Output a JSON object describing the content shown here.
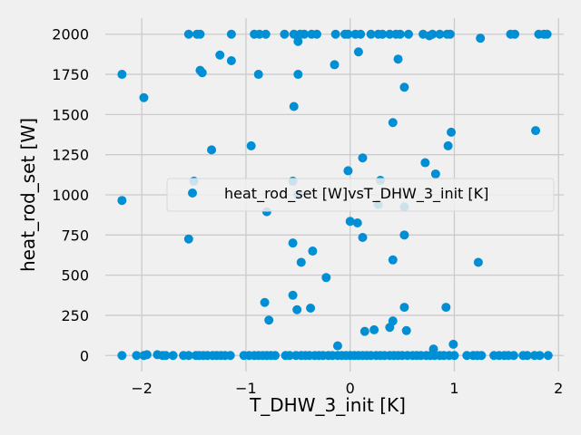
{
  "chart_data": {
    "type": "scatter",
    "xlabel": "T_DHW_3_init [K]",
    "ylabel": "heat_rod_set [W]",
    "xlim": [
      -2.35,
      2.05
    ],
    "ylim": [
      -100,
      2100
    ],
    "xticks": [
      -2,
      -1,
      0,
      1,
      2
    ],
    "xtick_labels": [
      "−2",
      "−1",
      "0",
      "1",
      "2"
    ],
    "yticks": [
      0,
      250,
      500,
      750,
      1000,
      1250,
      1500,
      1750,
      2000
    ],
    "ytick_labels": [
      "0",
      "250",
      "500",
      "750",
      "1000",
      "1250",
      "1500",
      "1750",
      "2000"
    ],
    "grid": true,
    "legend_position": "center-right",
    "color": "#008fd5",
    "series": [
      {
        "name": "heat_rod_set [W]vsT_DHW_3_init [K]",
        "points": [
          [
            -1.55,
            2000
          ],
          [
            -1.47,
            2000
          ],
          [
            -1.44,
            2000
          ],
          [
            -1.14,
            2000
          ],
          [
            -0.92,
            2000
          ],
          [
            -0.87,
            2000
          ],
          [
            -0.81,
            2000
          ],
          [
            -0.63,
            2000
          ],
          [
            -0.54,
            2000
          ],
          [
            -0.5,
            1990
          ],
          [
            -0.48,
            2000
          ],
          [
            -0.44,
            2000
          ],
          [
            -0.37,
            2000
          ],
          [
            -0.32,
            2000
          ],
          [
            -0.14,
            2000
          ],
          [
            -0.05,
            2000
          ],
          [
            -0.02,
            2000
          ],
          [
            0.05,
            2000
          ],
          [
            0.1,
            2000
          ],
          [
            0.2,
            2000
          ],
          [
            0.27,
            2000
          ],
          [
            0.31,
            2000
          ],
          [
            0.38,
            2000
          ],
          [
            0.44,
            2000
          ],
          [
            0.48,
            2000
          ],
          [
            0.56,
            2000
          ],
          [
            0.7,
            2000
          ],
          [
            0.76,
            1990
          ],
          [
            0.79,
            2000
          ],
          [
            0.86,
            2000
          ],
          [
            0.93,
            2000
          ],
          [
            0.96,
            2000
          ],
          [
            1.25,
            1975
          ],
          [
            1.54,
            2000
          ],
          [
            1.58,
            2000
          ],
          [
            1.81,
            2000
          ],
          [
            1.86,
            2000
          ],
          [
            1.89,
            2000
          ],
          [
            -0.5,
            1955
          ],
          [
            -2.19,
            1750
          ],
          [
            -1.98,
            1605
          ],
          [
            -1.44,
            1775
          ],
          [
            -1.42,
            1760
          ],
          [
            -1.25,
            1870
          ],
          [
            -1.14,
            1835
          ],
          [
            -0.88,
            1750
          ],
          [
            -0.5,
            1750
          ],
          [
            -0.15,
            1810
          ],
          [
            0.08,
            1890
          ],
          [
            0.46,
            1845
          ],
          [
            0.52,
            1670
          ],
          [
            -0.54,
            1550
          ],
          [
            0.41,
            1450
          ],
          [
            -1.33,
            1280
          ],
          [
            -0.95,
            1305
          ],
          [
            0.12,
            1230
          ],
          [
            0.94,
            1305
          ],
          [
            0.97,
            1390
          ],
          [
            1.78,
            1400
          ],
          [
            -0.02,
            1150
          ],
          [
            0.72,
            1200
          ],
          [
            0.82,
            1130
          ],
          [
            0.29,
            1090
          ],
          [
            -0.55,
            1085
          ],
          [
            -1.5,
            1085
          ],
          [
            -0.5,
            1000
          ],
          [
            -2.19,
            965
          ],
          [
            0.27,
            940
          ],
          [
            0.52,
            925
          ],
          [
            -0.8,
            895
          ],
          [
            0.0,
            835
          ],
          [
            0.07,
            825
          ],
          [
            -1.55,
            725
          ],
          [
            0.12,
            735
          ],
          [
            0.52,
            750
          ],
          [
            -0.55,
            700
          ],
          [
            -0.36,
            650
          ],
          [
            0.41,
            595
          ],
          [
            -0.47,
            580
          ],
          [
            1.23,
            580
          ],
          [
            -0.23,
            485
          ],
          [
            -0.82,
            330
          ],
          [
            -0.55,
            375
          ],
          [
            -0.51,
            285
          ],
          [
            -0.38,
            295
          ],
          [
            -0.78,
            220
          ],
          [
            0.52,
            300
          ],
          [
            0.92,
            300
          ],
          [
            0.41,
            215
          ],
          [
            0.38,
            175
          ],
          [
            0.14,
            150
          ],
          [
            0.23,
            160
          ],
          [
            0.54,
            155
          ],
          [
            -0.12,
            60
          ],
          [
            0.8,
            40
          ],
          [
            0.99,
            70
          ],
          [
            -2.19,
            0
          ],
          [
            -2.05,
            0
          ],
          [
            -1.98,
            0
          ],
          [
            -1.95,
            5
          ],
          [
            -1.85,
            5
          ],
          [
            -1.8,
            0
          ],
          [
            -1.77,
            0
          ],
          [
            -1.7,
            0
          ],
          [
            -1.6,
            0
          ],
          [
            -1.55,
            0
          ],
          [
            -1.48,
            0
          ],
          [
            -1.45,
            0
          ],
          [
            -1.41,
            0
          ],
          [
            -1.37,
            0
          ],
          [
            -1.32,
            0
          ],
          [
            -1.28,
            0
          ],
          [
            -1.24,
            0
          ],
          [
            -1.2,
            0
          ],
          [
            -1.15,
            0
          ],
          [
            -1.02,
            0
          ],
          [
            -0.97,
            0
          ],
          [
            -0.92,
            0
          ],
          [
            -0.88,
            0
          ],
          [
            -0.84,
            0
          ],
          [
            -0.8,
            0
          ],
          [
            -0.76,
            0
          ],
          [
            -0.72,
            0
          ],
          [
            -0.62,
            0
          ],
          [
            -0.58,
            0
          ],
          [
            -0.52,
            0
          ],
          [
            -0.47,
            0
          ],
          [
            -0.43,
            0
          ],
          [
            -0.39,
            0
          ],
          [
            -0.34,
            0
          ],
          [
            -0.3,
            0
          ],
          [
            -0.26,
            0
          ],
          [
            -0.21,
            0
          ],
          [
            -0.17,
            0
          ],
          [
            -0.12,
            0
          ],
          [
            -0.08,
            0
          ],
          [
            -0.04,
            0
          ],
          [
            0.0,
            0
          ],
          [
            0.04,
            0
          ],
          [
            0.08,
            0
          ],
          [
            0.12,
            0
          ],
          [
            0.16,
            0
          ],
          [
            0.2,
            0
          ],
          [
            0.25,
            0
          ],
          [
            0.29,
            0
          ],
          [
            0.33,
            0
          ],
          [
            0.38,
            0
          ],
          [
            0.42,
            0
          ],
          [
            0.46,
            0
          ],
          [
            0.5,
            0
          ],
          [
            0.55,
            0
          ],
          [
            0.6,
            0
          ],
          [
            0.64,
            0
          ],
          [
            0.68,
            0
          ],
          [
            0.73,
            0
          ],
          [
            0.77,
            0
          ],
          [
            0.81,
            0
          ],
          [
            0.86,
            0
          ],
          [
            0.9,
            0
          ],
          [
            0.95,
            0
          ],
          [
            1.0,
            0
          ],
          [
            1.12,
            0
          ],
          [
            1.18,
            0
          ],
          [
            1.22,
            0
          ],
          [
            1.26,
            0
          ],
          [
            1.38,
            0
          ],
          [
            1.43,
            0
          ],
          [
            1.48,
            0
          ],
          [
            1.52,
            0
          ],
          [
            1.57,
            0
          ],
          [
            1.66,
            0
          ],
          [
            1.7,
            0
          ],
          [
            1.77,
            0
          ],
          [
            1.82,
            0
          ],
          [
            1.9,
            0
          ]
        ]
      }
    ]
  }
}
